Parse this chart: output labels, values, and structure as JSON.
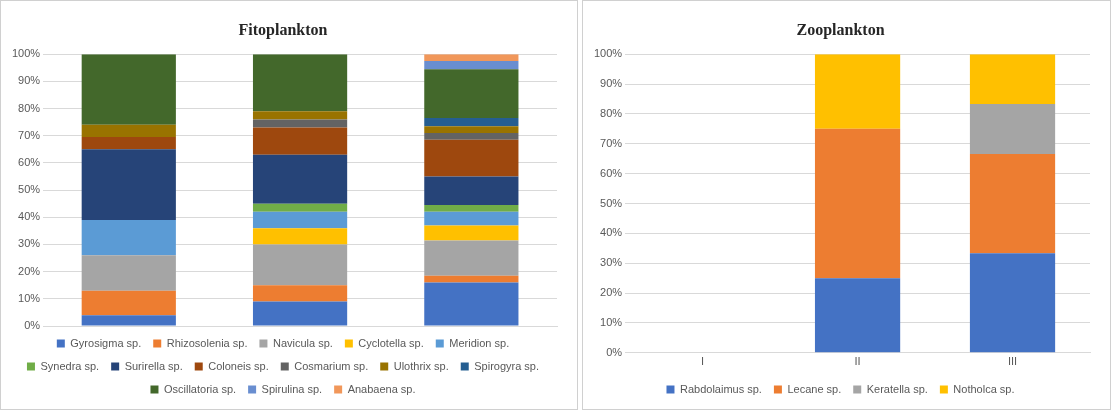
{
  "chart_data": [
    {
      "type": "bar",
      "title": "Fitoplankton",
      "categories": [
        null,
        null,
        null
      ],
      "stacked": true,
      "ylim": [
        0,
        100
      ],
      "yticks": [
        {
          "value": 0,
          "label": "0%"
        },
        {
          "value": 10,
          "label": "10%"
        },
        {
          "value": 20,
          "label": "20%"
        },
        {
          "value": 30,
          "label": "30%"
        },
        {
          "value": 40,
          "label": "40%"
        },
        {
          "value": 50,
          "label": "50%"
        },
        {
          "value": 60,
          "label": "60%"
        },
        {
          "value": 70,
          "label": "70%"
        },
        {
          "value": 80,
          "label": "80%"
        },
        {
          "value": 90,
          "label": "90%"
        },
        {
          "value": 100,
          "label": "100%"
        }
      ],
      "grid": "y",
      "legend": "bottom",
      "tick_labels": "y",
      "series": [
        {
          "name": "Gyrosigma sp.",
          "color": "#4472c4",
          "values": [
            4,
            9,
            16
          ]
        },
        {
          "name": "Rhizosolenia sp.",
          "color": "#ed7d31",
          "values": [
            9,
            6,
            2.5
          ]
        },
        {
          "name": "Navicula sp.",
          "color": "#a5a5a5",
          "values": [
            13,
            15,
            13
          ]
        },
        {
          "name": "Cyclotella sp.",
          "color": "#ffc000",
          "values": [
            0,
            6,
            5.5
          ]
        },
        {
          "name": "Meridion sp.",
          "color": "#5b9bd5",
          "values": [
            13,
            6,
            5
          ]
        },
        {
          "name": "Synedra sp.",
          "color": "#70ad47",
          "values": [
            0,
            3,
            2.5
          ]
        },
        {
          "name": "Surirella sp.",
          "color": "#264478",
          "values": [
            26,
            18,
            10.5
          ]
        },
        {
          "name": "Coloneis sp.",
          "color": "#9e480e",
          "values": [
            4.5,
            10,
            13.5
          ]
        },
        {
          "name": "Cosmarium sp.",
          "color": "#636363",
          "values": [
            0,
            3,
            2.5
          ]
        },
        {
          "name": "Ulothrix sp.",
          "color": "#997300",
          "values": [
            4.5,
            3,
            2.5
          ]
        },
        {
          "name": "Spirogyra sp.",
          "color": "#255e91",
          "values": [
            0,
            0,
            3
          ]
        },
        {
          "name": "Oscillatoria sp.",
          "color": "#43682b",
          "values": [
            26,
            21,
            18
          ]
        },
        {
          "name": "Spirulina sp.",
          "color": "#698ed0",
          "values": [
            0,
            0,
            3
          ]
        },
        {
          "name": "Anabaena sp.",
          "color": "#f1975a",
          "values": [
            0,
            0,
            2.5
          ]
        }
      ]
    },
    {
      "type": "bar",
      "title": "Zooplankton",
      "categories": [
        "I",
        "II",
        "III"
      ],
      "stacked": true,
      "ylim": [
        0,
        100
      ],
      "yticks": [
        {
          "value": 0,
          "label": "0%"
        },
        {
          "value": 10,
          "label": "10%"
        },
        {
          "value": 20,
          "label": "20%"
        },
        {
          "value": 30,
          "label": "30%"
        },
        {
          "value": 40,
          "label": "40%"
        },
        {
          "value": 50,
          "label": "50%"
        },
        {
          "value": 60,
          "label": "60%"
        },
        {
          "value": 70,
          "label": "70%"
        },
        {
          "value": 80,
          "label": "80%"
        },
        {
          "value": 90,
          "label": "90%"
        },
        {
          "value": 100,
          "label": "100%"
        }
      ],
      "grid": "y",
      "legend": "bottom",
      "series": [
        {
          "name": "Rabdolaimus sp.",
          "color": "#4472c4",
          "values": [
            0,
            25,
            33.3
          ]
        },
        {
          "name": "Lecane sp.",
          "color": "#ed7d31",
          "values": [
            0,
            50,
            33.3
          ]
        },
        {
          "name": "Keratella sp.",
          "color": "#a5a5a5",
          "values": [
            0,
            0,
            16.7
          ]
        },
        {
          "name": "Notholca sp.",
          "color": "#ffc000",
          "values": [
            0,
            25,
            16.7
          ]
        }
      ]
    }
  ]
}
